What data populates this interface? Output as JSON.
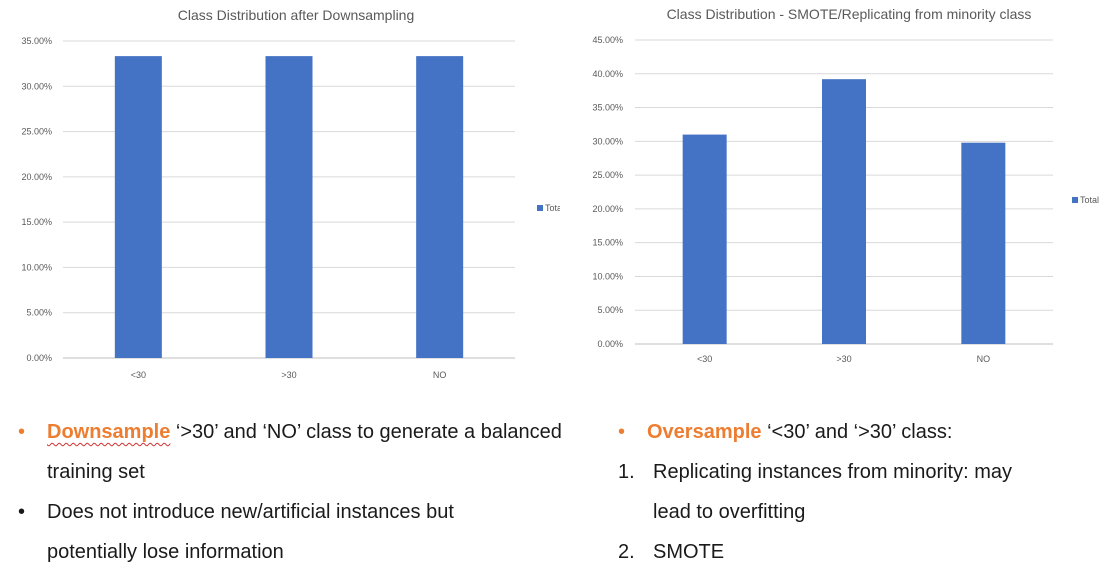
{
  "chart_data": [
    {
      "type": "bar",
      "title": "Class Distribution after Downsampling",
      "categories": [
        "<30",
        ">30",
        "NO"
      ],
      "series": [
        {
          "name": "Total",
          "values": [
            33.33,
            33.33,
            33.33
          ]
        }
      ],
      "yticks": [
        "0.00%",
        "5.00%",
        "10.00%",
        "15.00%",
        "20.00%",
        "25.00%",
        "30.00%",
        "35.00%"
      ],
      "ylim": [
        0,
        35
      ],
      "grid": true,
      "legend": "right",
      "bar_color": "#4472C4"
    },
    {
      "type": "bar",
      "title": "Class Distribution - SMOTE/Replicating from minority class",
      "categories": [
        "<30",
        ">30",
        "NO"
      ],
      "series": [
        {
          "name": "Total",
          "values": [
            31.0,
            39.2,
            29.8
          ]
        }
      ],
      "yticks": [
        "0.00%",
        "5.00%",
        "10.00%",
        "15.00%",
        "20.00%",
        "25.00%",
        "30.00%",
        "35.00%",
        "40.00%",
        "45.00%"
      ],
      "ylim": [
        0,
        45
      ],
      "grid": true,
      "legend": "right",
      "bar_color": "#4472C4"
    }
  ],
  "notes_left": {
    "bullet1": {
      "emph": "Downsample",
      "text_a": " ‘>30’ and ‘NO’ class to generate a balanced",
      "text_b": "training set"
    },
    "bullet2": {
      "text_a": "Does not introduce new/artificial instances but",
      "text_b": "potentially lose information"
    }
  },
  "notes_right": {
    "bullet1": {
      "emph": "Oversample",
      "text": " ‘<30’ and ‘>30’ class:"
    },
    "item1": {
      "num": "1.",
      "text_a": "Replicating instances from minority: may",
      "text_b": "lead to overfitting"
    },
    "item2": {
      "num": "2.",
      "text": "SMOTE"
    }
  }
}
